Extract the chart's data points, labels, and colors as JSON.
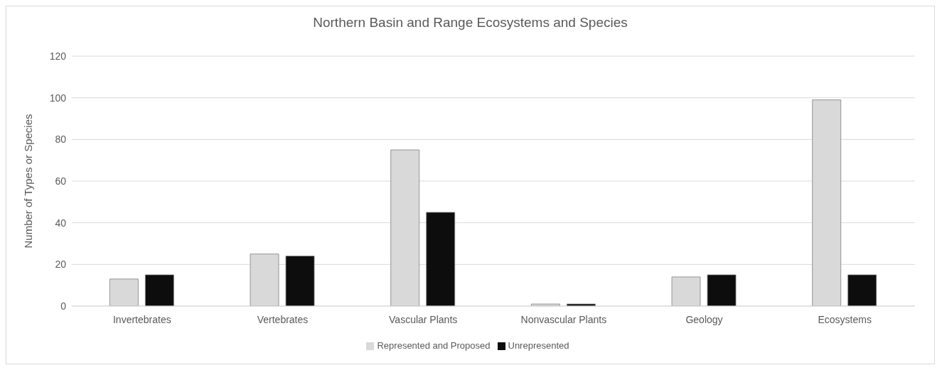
{
  "chart_data": {
    "type": "bar",
    "title": "Northern Basin and Range Ecosystems and Species",
    "ylabel": "Number of Types or Species",
    "categories": [
      "Invertebrates",
      "Vertebrates",
      "Vascular Plants",
      "Nonvascular Plants",
      "Geology",
      "Ecosystems"
    ],
    "series": [
      {
        "name": "Represented and Proposed",
        "color": "#d9d9d9",
        "values": [
          13,
          25,
          75,
          1,
          14,
          99
        ]
      },
      {
        "name": "Unrepresented",
        "color": "#0d0d0d",
        "values": [
          15,
          24,
          45,
          1,
          15,
          15
        ]
      }
    ],
    "ylim": [
      0,
      120
    ],
    "yticks": [
      0,
      20,
      40,
      60,
      80,
      100,
      120
    ],
    "grid": "y",
    "legend": "bottom"
  }
}
